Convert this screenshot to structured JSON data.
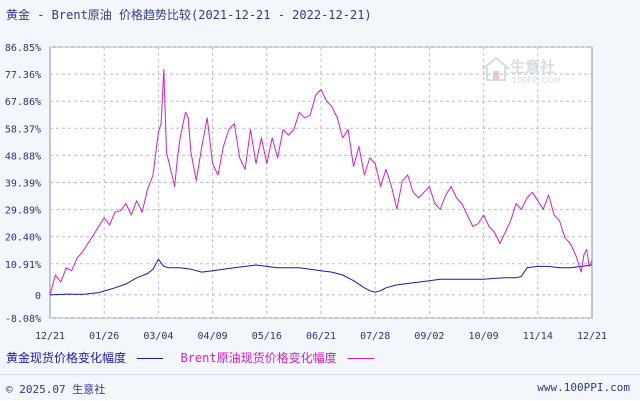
{
  "title": "黄金 - Brent原油 价格趋势比较(2021-12-21 - 2022-12-21)",
  "watermark": {
    "brand": "生意社",
    "url": "100PPI.COM"
  },
  "footer": {
    "copyright": "© 2025.07 生意社",
    "site": "www.100PPI.com"
  },
  "colors": {
    "gold": "#1a1ab0",
    "brent": "#d61fc7",
    "grid": "#b8bfd0",
    "axis_text": "#2e3380",
    "background": "#ffffff"
  },
  "chart_data": {
    "type": "line",
    "title": "黄金 - Brent原油 价格趋势比较(2021-12-21 - 2022-12-21)",
    "xlabel": "",
    "ylabel": "",
    "ylim": [
      -8.08,
      86.85
    ],
    "y_ticks": [
      "86.85%",
      "77.36%",
      "67.86%",
      "58.37%",
      "48.88%",
      "39.39%",
      "29.89%",
      "20.40%",
      "10.91%",
      "0",
      "-8.08%"
    ],
    "y_tick_values": [
      86.85,
      77.36,
      67.86,
      58.37,
      48.88,
      39.39,
      29.89,
      20.4,
      10.91,
      0,
      -8.08
    ],
    "x_ticks": [
      "12/21",
      "01/26",
      "03/04",
      "04/09",
      "05/16",
      "06/21",
      "07/28",
      "09/02",
      "10/09",
      "11/14",
      "12/21"
    ],
    "grid": true,
    "legend_position": "bottom",
    "series": [
      {
        "name": "黄金现货价格变化幅度",
        "color": "#1a1ab0",
        "points": [
          [
            0,
            0
          ],
          [
            0.03,
            0.3
          ],
          [
            0.06,
            0.2
          ],
          [
            0.09,
            0.8
          ],
          [
            0.12,
            2.5
          ],
          [
            0.14,
            3.8
          ],
          [
            0.16,
            6
          ],
          [
            0.18,
            7.5
          ],
          [
            0.19,
            9
          ],
          [
            0.2,
            12.5
          ],
          [
            0.21,
            10
          ],
          [
            0.22,
            9.5
          ],
          [
            0.24,
            9.5
          ],
          [
            0.26,
            9
          ],
          [
            0.28,
            8
          ],
          [
            0.3,
            8.5
          ],
          [
            0.32,
            9
          ],
          [
            0.34,
            9.5
          ],
          [
            0.36,
            10
          ],
          [
            0.38,
            10.5
          ],
          [
            0.4,
            10
          ],
          [
            0.42,
            9.5
          ],
          [
            0.44,
            9.5
          ],
          [
            0.46,
            9.5
          ],
          [
            0.48,
            9
          ],
          [
            0.5,
            8.5
          ],
          [
            0.52,
            8
          ],
          [
            0.54,
            7
          ],
          [
            0.56,
            5
          ],
          [
            0.58,
            2.5
          ],
          [
            0.59,
            1.5
          ],
          [
            0.6,
            1
          ],
          [
            0.61,
            1.5
          ],
          [
            0.62,
            2.5
          ],
          [
            0.64,
            3.5
          ],
          [
            0.66,
            4
          ],
          [
            0.68,
            4.5
          ],
          [
            0.7,
            5
          ],
          [
            0.72,
            5.5
          ],
          [
            0.74,
            5.5
          ],
          [
            0.76,
            5.5
          ],
          [
            0.78,
            5.5
          ],
          [
            0.8,
            5.5
          ],
          [
            0.82,
            5.8
          ],
          [
            0.84,
            6
          ],
          [
            0.86,
            6
          ],
          [
            0.87,
            6.5
          ],
          [
            0.88,
            9.5
          ],
          [
            0.9,
            10
          ],
          [
            0.92,
            10
          ],
          [
            0.94,
            9.5
          ],
          [
            0.96,
            9.5
          ],
          [
            0.98,
            10
          ],
          [
            1,
            10.5
          ]
        ]
      },
      {
        "name": "Brent原油现货价格变化幅度",
        "color": "#d61fc7",
        "points": [
          [
            0,
            0
          ],
          [
            0.01,
            7
          ],
          [
            0.02,
            4.5
          ],
          [
            0.03,
            9.5
          ],
          [
            0.04,
            8.5
          ],
          [
            0.05,
            13
          ],
          [
            0.06,
            15
          ],
          [
            0.07,
            18
          ],
          [
            0.08,
            21
          ],
          [
            0.09,
            24
          ],
          [
            0.1,
            27
          ],
          [
            0.11,
            24.5
          ],
          [
            0.12,
            29
          ],
          [
            0.13,
            29.5
          ],
          [
            0.14,
            32
          ],
          [
            0.15,
            28
          ],
          [
            0.16,
            33
          ],
          [
            0.17,
            29
          ],
          [
            0.18,
            37
          ],
          [
            0.19,
            42
          ],
          [
            0.2,
            57
          ],
          [
            0.205,
            60
          ],
          [
            0.21,
            79
          ],
          [
            0.215,
            50
          ],
          [
            0.22,
            46
          ],
          [
            0.23,
            38
          ],
          [
            0.235,
            48
          ],
          [
            0.24,
            55
          ],
          [
            0.25,
            64
          ],
          [
            0.255,
            62
          ],
          [
            0.26,
            50
          ],
          [
            0.27,
            40
          ],
          [
            0.28,
            52
          ],
          [
            0.29,
            62
          ],
          [
            0.3,
            46
          ],
          [
            0.31,
            42
          ],
          [
            0.32,
            52
          ],
          [
            0.33,
            58
          ],
          [
            0.34,
            60
          ],
          [
            0.35,
            48
          ],
          [
            0.36,
            44
          ],
          [
            0.37,
            58
          ],
          [
            0.38,
            46
          ],
          [
            0.39,
            55
          ],
          [
            0.4,
            46
          ],
          [
            0.41,
            55
          ],
          [
            0.42,
            48
          ],
          [
            0.43,
            58
          ],
          [
            0.44,
            56
          ],
          [
            0.45,
            58
          ],
          [
            0.46,
            64
          ],
          [
            0.47,
            62
          ],
          [
            0.48,
            63
          ],
          [
            0.49,
            70
          ],
          [
            0.5,
            72
          ],
          [
            0.51,
            68
          ],
          [
            0.52,
            66
          ],
          [
            0.53,
            62
          ],
          [
            0.54,
            55
          ],
          [
            0.55,
            58
          ],
          [
            0.56,
            45
          ],
          [
            0.57,
            52
          ],
          [
            0.58,
            42
          ],
          [
            0.59,
            48
          ],
          [
            0.6,
            46
          ],
          [
            0.61,
            38
          ],
          [
            0.62,
            44
          ],
          [
            0.63,
            38
          ],
          [
            0.64,
            30
          ],
          [
            0.65,
            40
          ],
          [
            0.66,
            42
          ],
          [
            0.67,
            36
          ],
          [
            0.68,
            34
          ],
          [
            0.69,
            36
          ],
          [
            0.7,
            38
          ],
          [
            0.71,
            32
          ],
          [
            0.72,
            30
          ],
          [
            0.73,
            35
          ],
          [
            0.74,
            38
          ],
          [
            0.75,
            34
          ],
          [
            0.76,
            32
          ],
          [
            0.77,
            28
          ],
          [
            0.78,
            24
          ],
          [
            0.79,
            25
          ],
          [
            0.8,
            28
          ],
          [
            0.81,
            24
          ],
          [
            0.82,
            22
          ],
          [
            0.83,
            18
          ],
          [
            0.84,
            22
          ],
          [
            0.85,
            26
          ],
          [
            0.86,
            32
          ],
          [
            0.87,
            30
          ],
          [
            0.88,
            34
          ],
          [
            0.89,
            36
          ],
          [
            0.9,
            33
          ],
          [
            0.91,
            30
          ],
          [
            0.92,
            35
          ],
          [
            0.93,
            28
          ],
          [
            0.94,
            26
          ],
          [
            0.95,
            20
          ],
          [
            0.96,
            18
          ],
          [
            0.97,
            14
          ],
          [
            0.98,
            8
          ],
          [
            0.985,
            14
          ],
          [
            0.99,
            16
          ],
          [
            0.995,
            10
          ],
          [
            1,
            12
          ]
        ]
      }
    ]
  }
}
